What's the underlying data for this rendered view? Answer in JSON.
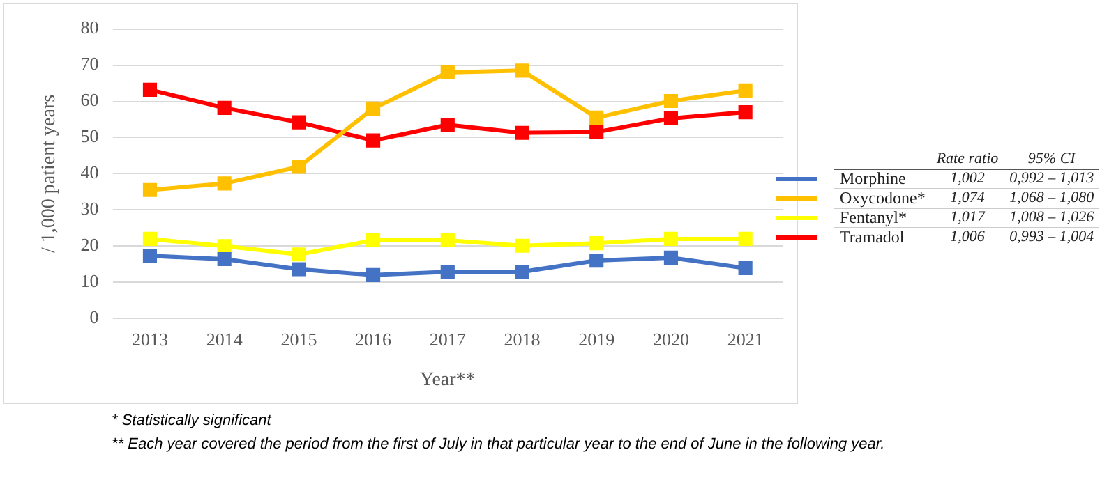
{
  "chart_data": {
    "type": "line",
    "xlabel": "Year**",
    "ylabel": "/ 1,000 patient years",
    "categories": [
      "2013",
      "2014",
      "2015",
      "2016",
      "2017",
      "2018",
      "2019",
      "2020",
      "2021"
    ],
    "series": [
      {
        "name": "Morphine",
        "color": "#4472c4",
        "values": [
          17.3,
          16.4,
          13.6,
          12.0,
          12.9,
          12.9,
          16.0,
          16.8,
          13.9
        ]
      },
      {
        "name": "Oxycodone*",
        "color": "#ffc000",
        "values": [
          35.5,
          37.3,
          41.9,
          58.0,
          68.0,
          68.5,
          55.5,
          60.1,
          63.0
        ]
      },
      {
        "name": "Fentanyl*",
        "color": "#ffff00",
        "values": [
          22.0,
          20.0,
          17.7,
          21.6,
          21.6,
          20.1,
          20.8,
          22.0,
          22.0
        ]
      },
      {
        "name": "Tramadol",
        "color": "#ff0000",
        "values": [
          63.2,
          58.2,
          54.2,
          49.2,
          53.5,
          51.3,
          51.5,
          55.3,
          57.0
        ]
      }
    ],
    "ylim": [
      0,
      80
    ],
    "yticks": [
      0,
      10,
      20,
      30,
      40,
      50,
      60,
      70,
      80
    ],
    "grid": "y",
    "legend": "right",
    "marker": "square",
    "line_style": "solid",
    "annotations": [
      "Rate ratio",
      "95% CI",
      "1,002",
      "0,992 – 1,013",
      "1,074",
      "1,068 – 1,080",
      "1,017",
      "1,008 – 1,026",
      "1,006",
      "0,993 – 1,004",
      "* Statistically significant",
      "** Each year covered the period from the first of July in that particular year to the end of June in the following year."
    ]
  }
}
